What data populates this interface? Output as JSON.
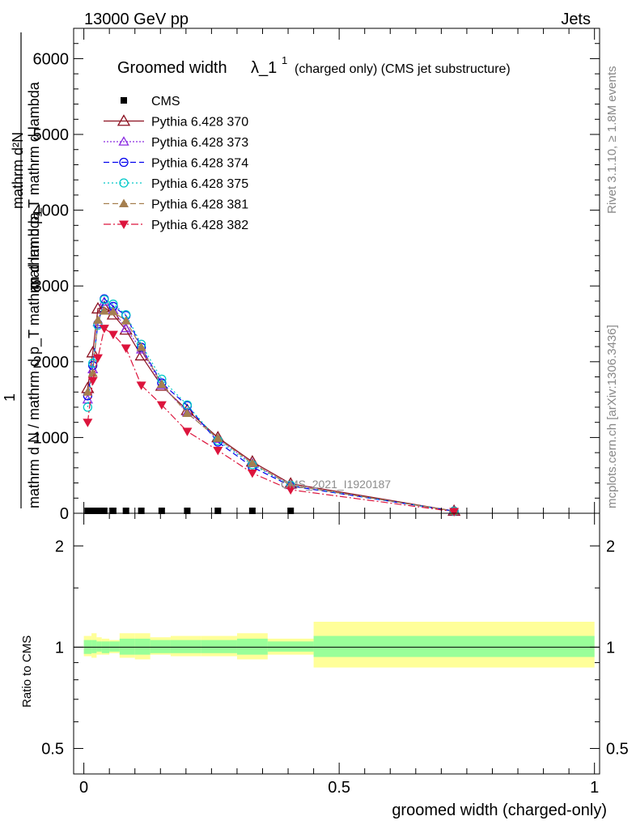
{
  "header": {
    "left": "13000 GeV pp",
    "right": "Jets",
    "rivet": "Rivet 3.1.10, ≥ 1.8M events",
    "mcplots": "mcplots.cern.ch [arXiv:1306.3436]",
    "watermark": "CMS_2021_I1920187"
  },
  "chart_data": [
    {
      "type": "line",
      "title": "Groomed width",
      "title_symbol": "λ_1",
      "title_sup": "1",
      "title_suffix": "(charged only) (CMS jet substructure)",
      "ylabel_numerator_lines": [
        "mathrm d²N",
        "mathrm d p_T mathrm d lambda"
      ],
      "ylabel_prefix": "1",
      "ylabel_denominator": "mathrm d N / mathrm d p_T mathrm d lambda",
      "xlim": [
        0,
        1
      ],
      "ylim": [
        0,
        6400
      ],
      "yticks": [
        0,
        1000,
        2000,
        3000,
        4000,
        5000,
        6000
      ],
      "yticklabels": [
        "0",
        "1000",
        "2000",
        "3000",
        "4000",
        "5000",
        "6000"
      ],
      "legend_position": "top-left",
      "x": [
        0.0075,
        0.0175,
        0.0275,
        0.04,
        0.0575,
        0.0825,
        0.1125,
        0.1525,
        0.2025,
        0.2625,
        0.33,
        0.405,
        0.725
      ],
      "series": [
        {
          "name": "CMS",
          "color": "#000000",
          "marker": "square",
          "dash": "",
          "values": [
            0,
            0,
            0,
            0,
            0,
            0,
            0,
            0,
            0,
            0,
            0,
            0,
            0
          ]
        },
        {
          "name": "Pythia 6.428 370",
          "color": "#8b0f1f",
          "marker": "triangle-open",
          "dash": "",
          "values": [
            1650,
            2120,
            2700,
            2720,
            2620,
            2420,
            2080,
            1680,
            1360,
            1000,
            680,
            390,
            30
          ]
        },
        {
          "name": "Pythia 6.428 373",
          "color": "#8a2be2",
          "marker": "triangle-open-small",
          "dash": "2,2",
          "values": [
            1500,
            1900,
            2520,
            2790,
            2680,
            2440,
            2160,
            1690,
            1330,
            980,
            660,
            370,
            28
          ]
        },
        {
          "name": "Pythia 6.428 374",
          "color": "#0000ee",
          "marker": "circle-open",
          "dash": "7,4",
          "values": [
            1550,
            1950,
            2500,
            2830,
            2730,
            2610,
            2190,
            1720,
            1420,
            940,
            610,
            360,
            28
          ]
        },
        {
          "name": "Pythia 6.428 375",
          "color": "#00c8c8",
          "marker": "circle-open",
          "dash": "2,3",
          "values": [
            1400,
            1980,
            2480,
            2820,
            2760,
            2620,
            2230,
            1770,
            1430,
            960,
            640,
            370,
            28
          ]
        },
        {
          "name": "Pythia 6.428 381",
          "color": "#a57f4f",
          "marker": "triangle-filled",
          "dash": "7,4",
          "values": [
            1600,
            1850,
            2550,
            2670,
            2660,
            2540,
            2190,
            1700,
            1320,
            990,
            660,
            370,
            28
          ]
        },
        {
          "name": "Pythia 6.428 382",
          "color": "#dc143c",
          "marker": "triangle-down-filled",
          "dash": "9,3,2,3",
          "values": [
            1200,
            1750,
            2050,
            2440,
            2360,
            2180,
            1690,
            1430,
            1080,
            830,
            530,
            310,
            22
          ]
        }
      ]
    },
    {
      "type": "area",
      "ylabel": "Ratio to CMS",
      "ylim": [
        0.42,
        2.5
      ],
      "ylog": true,
      "yticks": [
        0.5,
        1,
        2
      ],
      "yticklabels": [
        "0.5",
        "1",
        "2"
      ],
      "xlabel": "groomed width (charged-only)",
      "xlim": [
        0,
        1
      ],
      "xticks": [
        0,
        0.5,
        1
      ],
      "xticklabels": [
        "0",
        "0.5",
        "1"
      ],
      "bin_edges": [
        0,
        0.015,
        0.025,
        0.035,
        0.05,
        0.07,
        0.1,
        0.13,
        0.17,
        0.23,
        0.3,
        0.36,
        0.45,
        1.0
      ],
      "band_inner": [
        [
          0.955,
          1.05
        ],
        [
          0.96,
          1.05
        ],
        [
          0.97,
          1.04
        ],
        [
          0.96,
          1.04
        ],
        [
          0.97,
          1.04
        ],
        [
          0.95,
          1.06
        ],
        [
          0.95,
          1.06
        ],
        [
          0.96,
          1.05
        ],
        [
          0.96,
          1.05
        ],
        [
          0.96,
          1.05
        ],
        [
          0.95,
          1.06
        ],
        [
          0.97,
          1.04
        ],
        [
          0.935,
          1.08
        ]
      ],
      "band_outer": [
        [
          0.94,
          1.08
        ],
        [
          0.93,
          1.1
        ],
        [
          0.95,
          1.07
        ],
        [
          0.95,
          1.06
        ],
        [
          0.96,
          1.05
        ],
        [
          0.93,
          1.1
        ],
        [
          0.92,
          1.1
        ],
        [
          0.95,
          1.07
        ],
        [
          0.94,
          1.08
        ],
        [
          0.94,
          1.08
        ],
        [
          0.92,
          1.1
        ],
        [
          0.95,
          1.06
        ],
        [
          0.87,
          1.19
        ]
      ],
      "reference_value": 1,
      "band_colors": {
        "inner": "#99ff99",
        "outer": "#ffff99"
      }
    }
  ]
}
